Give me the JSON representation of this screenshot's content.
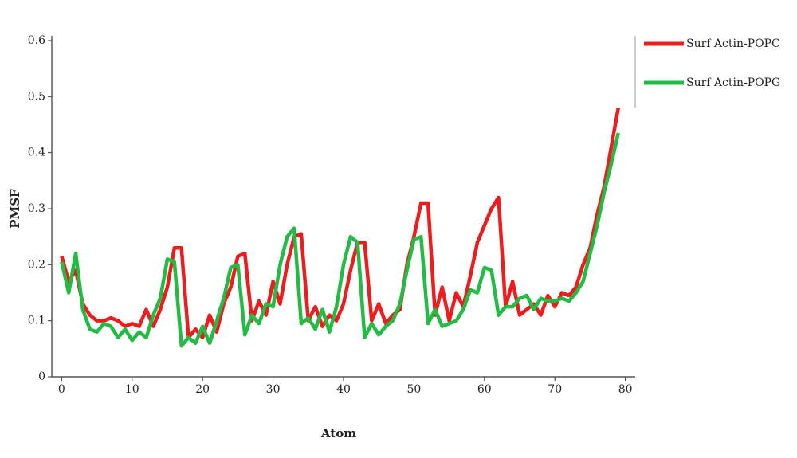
{
  "chart_data": {
    "type": "line",
    "x_label": "Atom",
    "y_label": "PMSF",
    "x": [
      0,
      1,
      2,
      3,
      4,
      5,
      6,
      7,
      8,
      9,
      10,
      11,
      12,
      13,
      14,
      15,
      16,
      17,
      18,
      19,
      20,
      21,
      22,
      23,
      24,
      25,
      26,
      27,
      28,
      29,
      30,
      31,
      32,
      33,
      34,
      35,
      36,
      37,
      38,
      39,
      40,
      41,
      42,
      43,
      44,
      45,
      46,
      47,
      48,
      49,
      50,
      51,
      52,
      53,
      54,
      55,
      56,
      57,
      58,
      59,
      60,
      61,
      62,
      63,
      64,
      65,
      66,
      67,
      68,
      69,
      70,
      71,
      72,
      73,
      74,
      75,
      76,
      77,
      78,
      79
    ],
    "series": [
      {
        "name": "Surf Actin-POPC",
        "color": "#ee1c1c",
        "values": [
          0.215,
          0.17,
          0.19,
          0.13,
          0.11,
          0.1,
          0.1,
          0.105,
          0.1,
          0.09,
          0.095,
          0.09,
          0.12,
          0.09,
          0.12,
          0.16,
          0.23,
          0.23,
          0.07,
          0.085,
          0.07,
          0.11,
          0.08,
          0.13,
          0.16,
          0.215,
          0.22,
          0.1,
          0.135,
          0.11,
          0.17,
          0.13,
          0.2,
          0.25,
          0.255,
          0.1,
          0.125,
          0.09,
          0.11,
          0.1,
          0.13,
          0.19,
          0.24,
          0.24,
          0.1,
          0.13,
          0.095,
          0.11,
          0.12,
          0.2,
          0.25,
          0.31,
          0.31,
          0.11,
          0.16,
          0.1,
          0.15,
          0.125,
          0.18,
          0.24,
          0.27,
          0.3,
          0.32,
          0.125,
          0.17,
          0.11,
          0.12,
          0.13,
          0.11,
          0.145,
          0.125,
          0.15,
          0.145,
          0.16,
          0.2,
          0.23,
          0.29,
          0.34,
          0.41,
          0.48
        ]
      },
      {
        "name": "Surf Actin-POPG",
        "color": "#22bb44",
        "values": [
          0.205,
          0.15,
          0.22,
          0.12,
          0.085,
          0.08,
          0.095,
          0.09,
          0.07,
          0.085,
          0.065,
          0.08,
          0.07,
          0.11,
          0.14,
          0.21,
          0.205,
          0.055,
          0.07,
          0.06,
          0.09,
          0.06,
          0.1,
          0.14,
          0.195,
          0.2,
          0.075,
          0.11,
          0.095,
          0.13,
          0.125,
          0.2,
          0.25,
          0.265,
          0.095,
          0.105,
          0.085,
          0.12,
          0.08,
          0.125,
          0.2,
          0.25,
          0.24,
          0.07,
          0.095,
          0.075,
          0.09,
          0.1,
          0.13,
          0.19,
          0.245,
          0.25,
          0.095,
          0.12,
          0.09,
          0.095,
          0.1,
          0.12,
          0.155,
          0.15,
          0.195,
          0.19,
          0.11,
          0.125,
          0.125,
          0.14,
          0.145,
          0.12,
          0.14,
          0.135,
          0.135,
          0.14,
          0.135,
          0.15,
          0.17,
          0.22,
          0.27,
          0.33,
          0.38,
          0.435
        ]
      }
    ],
    "xlim": [
      -1.4,
      81.4
    ],
    "xticks": [
      0,
      10,
      20,
      30,
      40,
      50,
      60,
      70,
      80
    ],
    "ylim": [
      0,
      0.6
    ],
    "yticks": [
      0,
      0.1,
      0.2,
      0.3,
      0.4,
      0.5,
      0.6
    ],
    "grid": false,
    "legend": "right"
  }
}
